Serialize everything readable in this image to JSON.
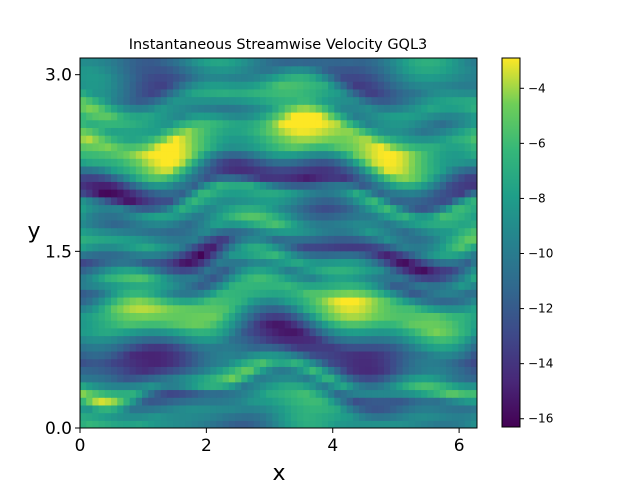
{
  "chart_data": {
    "type": "heatmap",
    "title": "Instantaneous Streamwise Velocity GQL3",
    "xlabel": "x",
    "ylabel": "y",
    "xlim": [
      0,
      6.2832
    ],
    "ylim": [
      0,
      3.1416
    ],
    "x_ticks": [
      {
        "value": 0,
        "label": "0"
      },
      {
        "value": 2,
        "label": "2"
      },
      {
        "value": 4,
        "label": "4"
      },
      {
        "value": 6,
        "label": "6"
      }
    ],
    "y_ticks": [
      {
        "value": 0,
        "label": "0.0"
      },
      {
        "value": 1.5,
        "label": "1.5"
      },
      {
        "value": 3.0,
        "label": "3.0"
      }
    ],
    "colorbar": {
      "colormap": "viridis",
      "range": [
        -16.3,
        -2.9
      ],
      "ticks": [
        {
          "value": -4,
          "label": "−4"
        },
        {
          "value": -6,
          "label": "−6"
        },
        {
          "value": -8,
          "label": "−8"
        },
        {
          "value": -10,
          "label": "−10"
        },
        {
          "value": -12,
          "label": "−12"
        },
        {
          "value": -14,
          "label": "−14"
        },
        {
          "value": -16,
          "label": "−16"
        }
      ]
    },
    "grid": false,
    "value_profile_by_y": [
      {
        "y": 0.0,
        "value": -9.5
      },
      {
        "y": 0.15,
        "value": -8.0
      },
      {
        "y": 0.3,
        "value": -11.0
      },
      {
        "y": 0.4,
        "value": -6.0
      },
      {
        "y": 0.55,
        "value": -12.0
      },
      {
        "y": 0.7,
        "value": -13.0
      },
      {
        "y": 0.85,
        "value": -9.0
      },
      {
        "y": 0.95,
        "value": -6.0
      },
      {
        "y": 1.1,
        "value": -5.5
      },
      {
        "y": 1.25,
        "value": -10.5
      },
      {
        "y": 1.35,
        "value": -8.0
      },
      {
        "y": 1.5,
        "value": -13.5
      },
      {
        "y": 1.65,
        "value": -7.5
      },
      {
        "y": 1.8,
        "value": -10.0
      },
      {
        "y": 1.95,
        "value": -7.0
      },
      {
        "y": 2.05,
        "value": -13.5
      },
      {
        "y": 2.15,
        "value": -12.0
      },
      {
        "y": 2.3,
        "value": -6.0
      },
      {
        "y": 2.5,
        "value": -4.5
      },
      {
        "y": 2.65,
        "value": -9.0
      },
      {
        "y": 2.8,
        "value": -7.0
      },
      {
        "y": 2.95,
        "value": -11.0
      },
      {
        "y": 3.1416,
        "value": -9.5
      }
    ]
  }
}
